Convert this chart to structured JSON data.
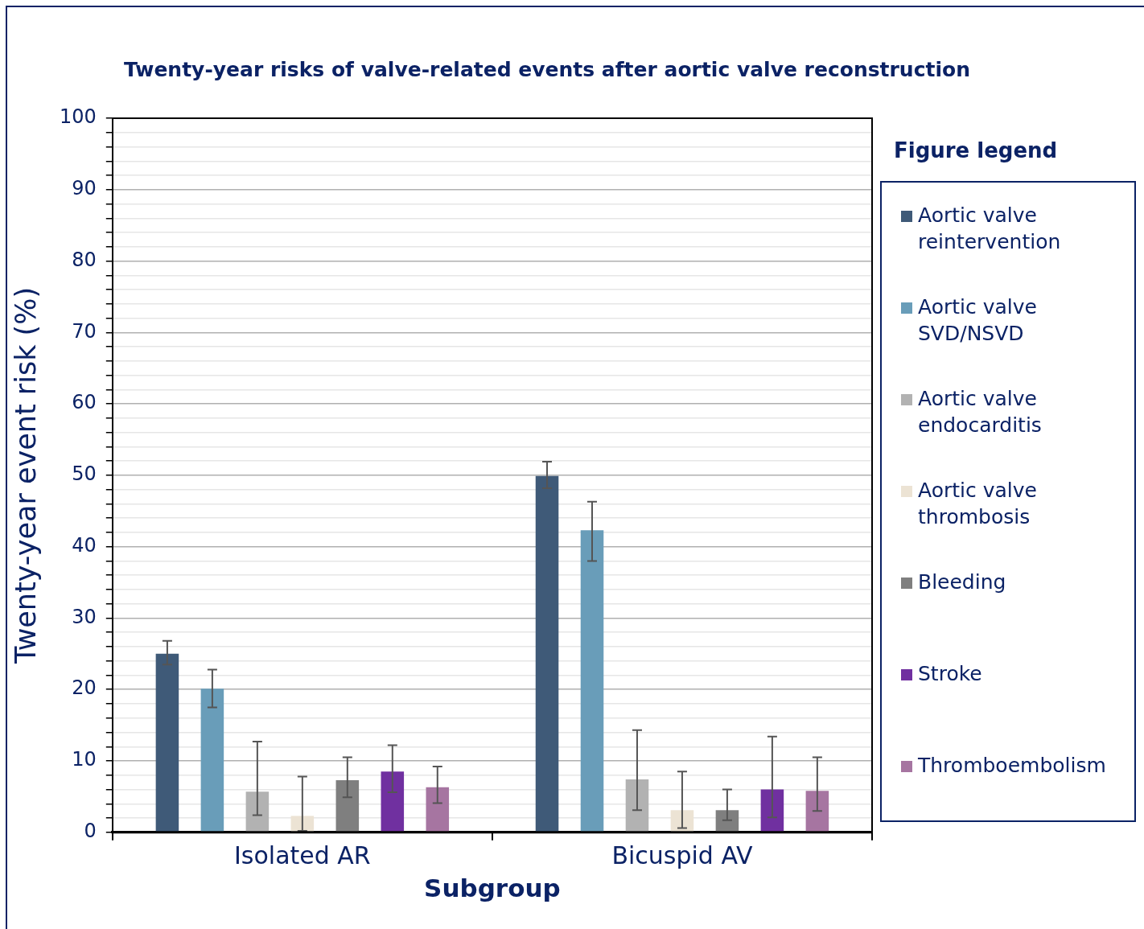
{
  "chart_data": {
    "type": "bar",
    "title": "Twenty-year risks of valve-related events after aortic valve reconstruction",
    "xlabel": "Subgroup",
    "ylabel": "Twenty-year event risk (%)",
    "legend_title": "Figure legend",
    "legend": "right",
    "grid": "y",
    "categories": [
      "Isolated AR",
      "Bicuspid AV"
    ],
    "ylim": [
      0,
      100
    ],
    "yticks": [
      0,
      {
        "value": 2,
        "label": null
      },
      {
        "value": 4,
        "label": null
      },
      {
        "value": 6,
        "label": null
      },
      {
        "value": 8,
        "label": null
      },
      10,
      {
        "value": 12,
        "label": null
      },
      {
        "value": 14,
        "label": null
      },
      {
        "value": 16,
        "label": null
      },
      {
        "value": 18,
        "label": null
      },
      20,
      {
        "value": 22,
        "label": null
      },
      {
        "value": 24,
        "label": null
      },
      {
        "value": 26,
        "label": null
      },
      {
        "value": 28,
        "label": null
      },
      30,
      {
        "value": 32,
        "label": null
      },
      {
        "value": 34,
        "label": null
      },
      {
        "value": 36,
        "label": null
      },
      {
        "value": 38,
        "label": null
      },
      40,
      {
        "value": 42,
        "label": null
      },
      {
        "value": 44,
        "label": null
      },
      {
        "value": 46,
        "label": null
      },
      {
        "value": 48,
        "label": null
      },
      50,
      {
        "value": 52,
        "label": null
      },
      {
        "value": 54,
        "label": null
      },
      {
        "value": 56,
        "label": null
      },
      {
        "value": 58,
        "label": null
      },
      60,
      {
        "value": 62,
        "label": null
      },
      {
        "value": 64,
        "label": null
      },
      {
        "value": 66,
        "label": null
      },
      {
        "value": 68,
        "label": null
      },
      70,
      {
        "value": 72,
        "label": null
      },
      {
        "value": 74,
        "label": null
      },
      {
        "value": 76,
        "label": null
      },
      {
        "value": 78,
        "label": null
      },
      80,
      {
        "value": 82,
        "label": null
      },
      {
        "value": 84,
        "label": null
      },
      {
        "value": 86,
        "label": null
      },
      {
        "value": 88,
        "label": null
      },
      90,
      {
        "value": 92,
        "label": null
      },
      {
        "value": 94,
        "label": null
      },
      {
        "value": 96,
        "label": null
      },
      {
        "value": 98,
        "label": null
      },
      100
    ],
    "series": [
      {
        "name": "Aortic valve reintervention",
        "color": "#3f5a78",
        "values": [
          25.0,
          49.9
        ],
        "errors": [
          [
            23.5,
            26.8
          ],
          [
            48.2,
            51.9
          ]
        ]
      },
      {
        "name": "Aortic valve SVD/NSVD",
        "color": "#699db9",
        "values": [
          20.1,
          42.3
        ],
        "errors": [
          [
            17.5,
            22.8
          ],
          [
            38.0,
            46.3
          ]
        ]
      },
      {
        "name": "Aortic valve endocarditis",
        "color": "#b2b2b2",
        "values": [
          5.7,
          7.4
        ],
        "errors": [
          [
            2.4,
            12.7
          ],
          [
            3.1,
            14.3
          ]
        ]
      },
      {
        "name": "Aortic valve thrombosis",
        "color": "#ece3d4",
        "values": [
          2.3,
          3.1
        ],
        "errors": [
          [
            0.2,
            7.8
          ],
          [
            0.6,
            8.5
          ]
        ]
      },
      {
        "name": "Bleeding",
        "color": "#7f7f7f",
        "values": [
          7.3,
          3.1
        ],
        "errors": [
          [
            4.9,
            10.5
          ],
          [
            1.7,
            6.0
          ]
        ]
      },
      {
        "name": "Stroke",
        "color": "#7030a0",
        "values": [
          8.5,
          6.0
        ],
        "errors": [
          [
            5.6,
            12.2
          ],
          [
            2.1,
            13.4
          ]
        ]
      },
      {
        "name": "Thromboembolism",
        "color": "#a675a1",
        "values": [
          6.3,
          5.8
        ],
        "errors": [
          [
            4.1,
            9.2
          ],
          [
            3.0,
            10.5
          ]
        ]
      }
    ]
  }
}
